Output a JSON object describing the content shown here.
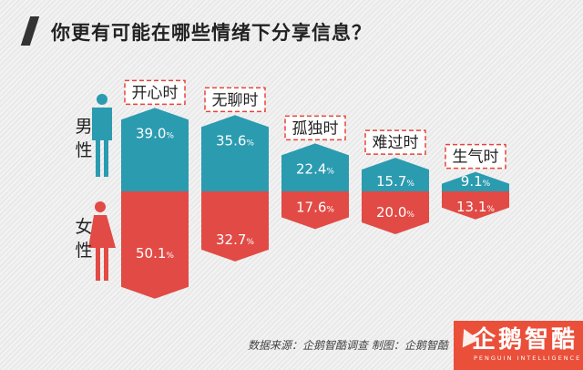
{
  "title": "你更有可能在哪些情绪下分享信息？",
  "legend": {
    "male": "男性",
    "female": "女性"
  },
  "source": "数据来源：企鹅智酷调查   制图：企鹅智酷",
  "logo": {
    "name": "企鹅智酷",
    "tagline": "PENGUIN INTELLIGENCE"
  },
  "colors": {
    "male": "#2b9bb0",
    "female": "#e24a45",
    "label_border": "#e8443a",
    "logo_bg": "#ea4f3a"
  },
  "chart_data": {
    "type": "bar",
    "categories": [
      "开心时",
      "无聊时",
      "孤独时",
      "难过时",
      "生气时"
    ],
    "series": [
      {
        "name": "男性",
        "values": [
          39.0,
          35.6,
          22.4,
          15.7,
          9.1
        ]
      },
      {
        "name": "女性",
        "values": [
          50.1,
          32.7,
          17.6,
          20.0,
          13.1
        ]
      }
    ],
    "value_format": "{v}%",
    "layout": "mirrored arrows, male up, female down"
  }
}
